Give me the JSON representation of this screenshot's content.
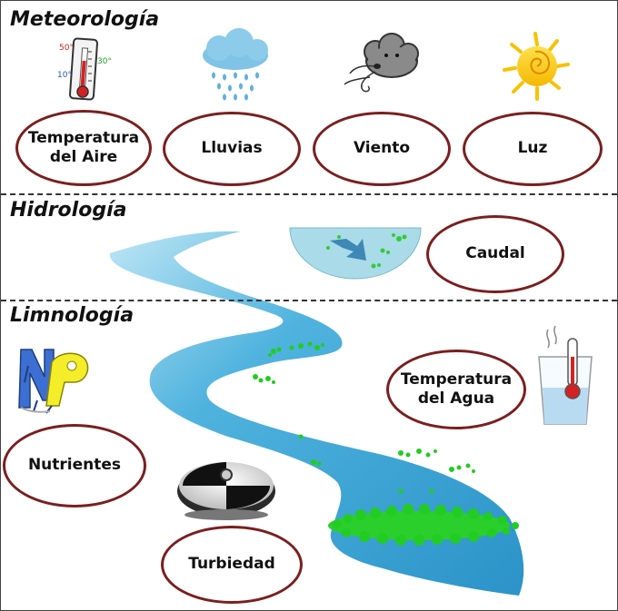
{
  "sections": {
    "meteorologia": "Meteorología",
    "hidrologia": "Hidrología",
    "limnologia": "Limnología"
  },
  "meteo_labels": {
    "temp_aire_line1": "Temperatura",
    "temp_aire_line2": "del Aire",
    "lluvias": "Lluvias",
    "viento": "Viento",
    "luz": "Luz"
  },
  "thermometer_marks": {
    "t50": "50°",
    "t30": "30°",
    "t10": "10°"
  },
  "hidro_labels": {
    "caudal": "Caudal"
  },
  "limno_labels": {
    "temp_agua_line1": "Temperatura",
    "temp_agua_line2": "del Agua",
    "nutrientes": "Nutrientes",
    "turbiedad": "Turbiedad"
  },
  "icons": [
    "thermometer-icon",
    "rain-cloud-icon",
    "wind-cloud-icon",
    "sun-icon",
    "current-flow-icon",
    "np-letters-icon",
    "secchi-disk-icon",
    "water-glass-thermometer-icon"
  ],
  "colors": {
    "oval_border": "#7a1f1f",
    "river": "#3aa6d6",
    "algae": "#22cc22"
  }
}
